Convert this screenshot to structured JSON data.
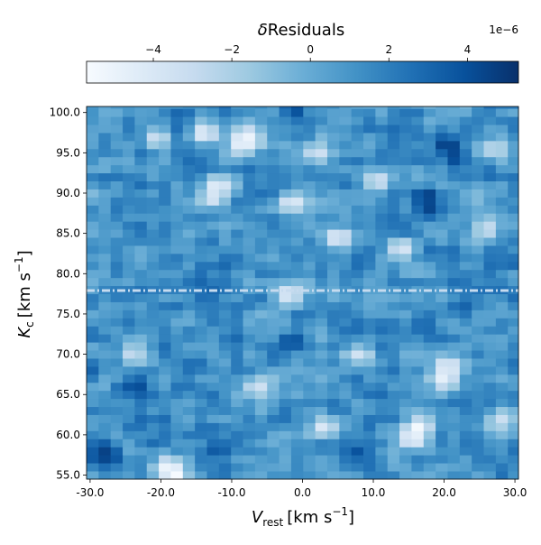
{
  "chart_data": {
    "type": "heatmap",
    "title": "",
    "xlabel": "V_rest [km s^-1]",
    "ylabel": "K_c [km s^-1]",
    "xlabel_main": "V",
    "xlabel_sub": "rest",
    "xlabel_units": "[km s",
    "xlabel_close": "]",
    "ylabel_main": "K",
    "ylabel_sub": "c",
    "ylabel_units": "[km s",
    "ylabel_close": "]",
    "unit_exponent": "−1",
    "x_range": [
      -30.5,
      30.5
    ],
    "y_range": [
      54.5,
      100.75
    ],
    "n_cols": 36,
    "n_rows": 47,
    "cell_step_x": 1.7,
    "cell_step_y": 1.0,
    "x_ticks": [
      {
        "value": -30,
        "label": "-30.0"
      },
      {
        "value": -20,
        "label": "-20.0"
      },
      {
        "value": -10,
        "label": "-10.0"
      },
      {
        "value": 0,
        "label": "0.0"
      },
      {
        "value": 10,
        "label": "10.0"
      },
      {
        "value": 20,
        "label": "20.0"
      },
      {
        "value": 30,
        "label": "30.0"
      }
    ],
    "y_ticks": [
      {
        "value": 55,
        "label": "55.0"
      },
      {
        "value": 60,
        "label": "60.0"
      },
      {
        "value": 65,
        "label": "65.0"
      },
      {
        "value": 70,
        "label": "70.0"
      },
      {
        "value": 75,
        "label": "75.0"
      },
      {
        "value": 80,
        "label": "80.0"
      },
      {
        "value": 85,
        "label": "85.0"
      },
      {
        "value": 90,
        "label": "90.0"
      },
      {
        "value": 95,
        "label": "95.0"
      },
      {
        "value": 100,
        "label": "100.0"
      }
    ],
    "reference_line": {
      "y": 77.9,
      "style": "dashdot",
      "color": "#c6dbef"
    },
    "colorbar": {
      "label_prefix": "δ",
      "label_main": "Residuals",
      "multiplier": "1e−6",
      "range": [
        -5.7,
        5.3
      ],
      "orientation": "horizontal",
      "location": "top",
      "colormap": "Blues",
      "colormap_stops": [
        "#f7fbff",
        "#deebf7",
        "#c6dbef",
        "#9ecae1",
        "#6baed6",
        "#4292c6",
        "#2171b5",
        "#08519c",
        "#08306b"
      ],
      "ticks": [
        {
          "value": -4,
          "label": "−4"
        },
        {
          "value": -2,
          "label": "−2"
        },
        {
          "value": 0,
          "label": "0"
        },
        {
          "value": 2,
          "label": "2"
        },
        {
          "value": 4,
          "label": "4"
        }
      ]
    },
    "features": [
      {
        "x": 20.5,
        "y": 96.0,
        "value": 5.2
      },
      {
        "x": 21.5,
        "y": 94.5,
        "value": 4.6
      },
      {
        "x": 17.5,
        "y": 89.5,
        "value": 5.0
      },
      {
        "x": 17.8,
        "y": 88.0,
        "value": 4.4
      },
      {
        "x": -28.0,
        "y": 58.0,
        "value": 4.7
      },
      {
        "x": -27.5,
        "y": 57.0,
        "value": 4.4
      },
      {
        "x": -1.0,
        "y": 100.5,
        "value": 4.3
      },
      {
        "x": -1.5,
        "y": 71.5,
        "value": 4.0
      },
      {
        "x": -23.5,
        "y": 66.0,
        "value": 4.2
      },
      {
        "x": -12.0,
        "y": 58.0,
        "value": 3.8
      },
      {
        "x": 8.0,
        "y": 58.0,
        "value": 3.9
      },
      {
        "x": -14.0,
        "y": 97.5,
        "value": -4.8
      },
      {
        "x": -8.0,
        "y": 97.0,
        "value": -5.4
      },
      {
        "x": -8.5,
        "y": 96.0,
        "value": -5.0
      },
      {
        "x": 2.0,
        "y": 95.0,
        "value": -3.8
      },
      {
        "x": -12.0,
        "y": 91.0,
        "value": -4.6
      },
      {
        "x": -12.5,
        "y": 89.5,
        "value": -4.2
      },
      {
        "x": -1.5,
        "y": 89.0,
        "value": -4.5
      },
      {
        "x": 5.0,
        "y": 84.5,
        "value": -4.8
      },
      {
        "x": 10.5,
        "y": 91.5,
        "value": -4.0
      },
      {
        "x": 14.0,
        "y": 83.0,
        "value": -4.0
      },
      {
        "x": -2.0,
        "y": 77.5,
        "value": -4.6
      },
      {
        "x": 20.5,
        "y": 68.5,
        "value": -5.2
      },
      {
        "x": 20.0,
        "y": 67.0,
        "value": -4.8
      },
      {
        "x": 16.5,
        "y": 61.0,
        "value": -5.5
      },
      {
        "x": 15.5,
        "y": 59.5,
        "value": -5.6
      },
      {
        "x": -19.0,
        "y": 56.0,
        "value": -5.0
      },
      {
        "x": -18.0,
        "y": 55.0,
        "value": -5.7
      },
      {
        "x": -6.5,
        "y": 66.0,
        "value": -3.8
      },
      {
        "x": 3.0,
        "y": 61.0,
        "value": -4.2
      },
      {
        "x": 8.0,
        "y": 70.0,
        "value": -3.6
      },
      {
        "x": -20.5,
        "y": 97.0,
        "value": -3.5
      },
      {
        "x": 26.0,
        "y": 85.5,
        "value": -3.4
      },
      {
        "x": 27.0,
        "y": 95.5,
        "value": -3.2
      },
      {
        "x": -24.0,
        "y": 70.0,
        "value": -3.0
      },
      {
        "x": 28.0,
        "y": 62.0,
        "value": -3.2
      }
    ]
  }
}
